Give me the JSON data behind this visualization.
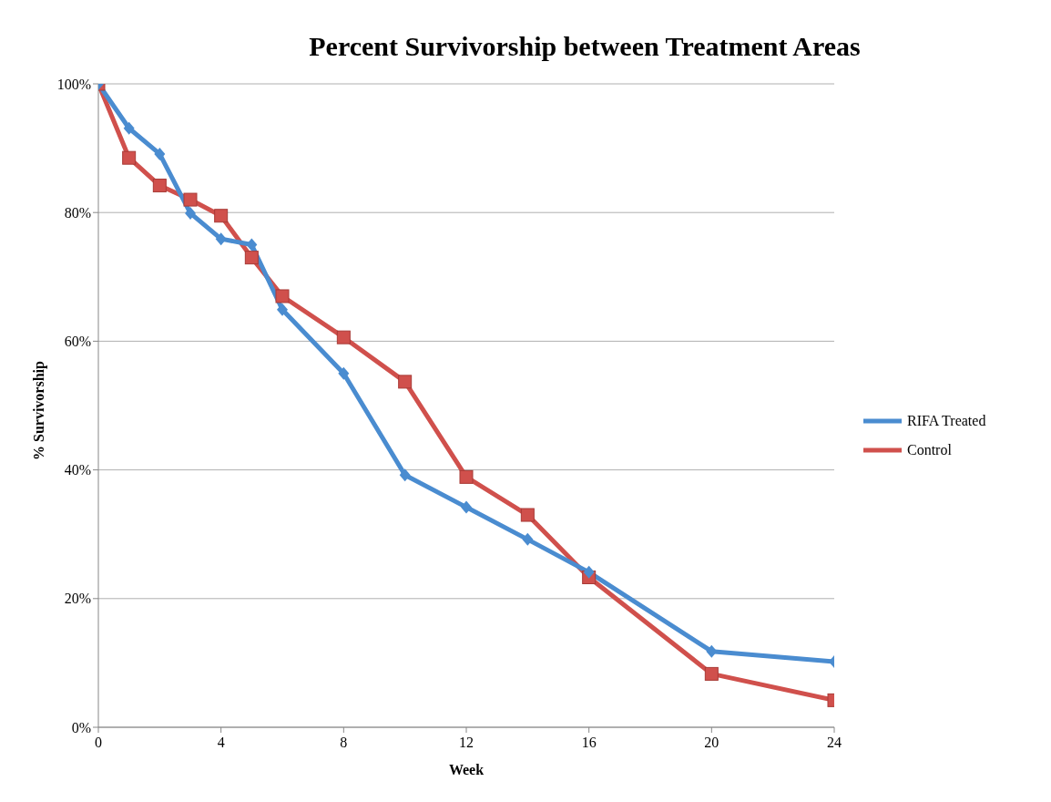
{
  "chart_data": {
    "type": "line",
    "title": "Percent Survivorship between Treatment Areas",
    "xlabel": "Week",
    "ylabel": "% Survivorship",
    "xlim": [
      0,
      24
    ],
    "xticks": [
      0,
      4,
      8,
      12,
      16,
      20,
      24
    ],
    "ylim": [
      0,
      100
    ],
    "yticks": [
      {
        "value": 0,
        "label": "0%"
      },
      {
        "value": 20,
        "label": "20%"
      },
      {
        "value": 40,
        "label": "40%"
      },
      {
        "value": 60,
        "label": "60%"
      },
      {
        "value": 80,
        "label": "80%"
      },
      {
        "value": 100,
        "label": "100%"
      }
    ],
    "grid": "y",
    "legend": "right",
    "x": [
      0,
      1,
      2,
      3,
      4,
      5,
      6,
      8,
      10,
      12,
      14,
      16,
      20,
      24
    ],
    "series": [
      {
        "name": "RIFA Treated",
        "color": "#4a8cd0",
        "marker": "diamond",
        "values": [
          100,
          93.1,
          89.1,
          79.9,
          75.9,
          75,
          64.9,
          55,
          39.2,
          34.2,
          29.2,
          24.1,
          11.8,
          10.2
        ]
      },
      {
        "name": "Control",
        "color": "#d0504c",
        "marker": "square",
        "values": [
          100,
          88.5,
          84.2,
          82,
          79.5,
          73,
          67,
          60.6,
          53.7,
          38.9,
          33,
          23.3,
          8.3,
          4.2
        ]
      }
    ]
  }
}
